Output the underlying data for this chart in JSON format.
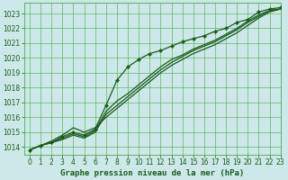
{
  "title": "Graphe pression niveau de la mer (hPa)",
  "bg_color": "#cce8e8",
  "grid_color": "#4aaa4a",
  "line_color": "#1a5c1a",
  "marker_color": "#1a5c1a",
  "xlim": [
    -0.5,
    23
  ],
  "ylim": [
    1013.5,
    1023.7
  ],
  "yticks": [
    1014,
    1015,
    1016,
    1017,
    1018,
    1019,
    1020,
    1021,
    1022,
    1023
  ],
  "xticks": [
    0,
    1,
    2,
    3,
    4,
    5,
    6,
    7,
    8,
    9,
    10,
    11,
    12,
    13,
    14,
    15,
    16,
    17,
    18,
    19,
    20,
    21,
    22,
    23
  ],
  "series": [
    [
      1013.8,
      1014.1,
      1014.3,
      1014.7,
      1015.0,
      1014.8,
      1015.2,
      1016.8,
      1018.5,
      1019.4,
      1019.9,
      1020.3,
      1020.5,
      1020.8,
      1021.1,
      1021.3,
      1021.5,
      1021.8,
      1022.0,
      1022.4,
      1022.6,
      1023.1,
      1023.3,
      1023.4
    ],
    [
      1013.8,
      1014.1,
      1014.3,
      1014.5,
      1014.8,
      1014.6,
      1015.0,
      1016.2,
      1016.8,
      1017.4,
      1018.0,
      1018.6,
      1019.2,
      1019.7,
      1020.1,
      1020.5,
      1020.8,
      1021.1,
      1021.5,
      1021.9,
      1022.4,
      1022.8,
      1023.2,
      1023.3
    ],
    [
      1013.8,
      1014.1,
      1014.3,
      1014.6,
      1014.9,
      1014.7,
      1015.1,
      1016.4,
      1017.1,
      1017.6,
      1018.2,
      1018.8,
      1019.4,
      1019.9,
      1020.2,
      1020.6,
      1020.9,
      1021.2,
      1021.6,
      1022.0,
      1022.5,
      1022.9,
      1023.2,
      1023.3
    ],
    [
      1013.8,
      1014.1,
      1014.4,
      1014.8,
      1015.3,
      1015.0,
      1015.3,
      1016.0,
      1016.6,
      1017.2,
      1017.8,
      1018.4,
      1019.0,
      1019.5,
      1019.9,
      1020.3,
      1020.6,
      1020.9,
      1021.3,
      1021.7,
      1022.2,
      1022.7,
      1023.1,
      1023.3
    ]
  ],
  "marker_series": 0,
  "label_fontsize": 6.5,
  "tick_fontsize": 5.5
}
